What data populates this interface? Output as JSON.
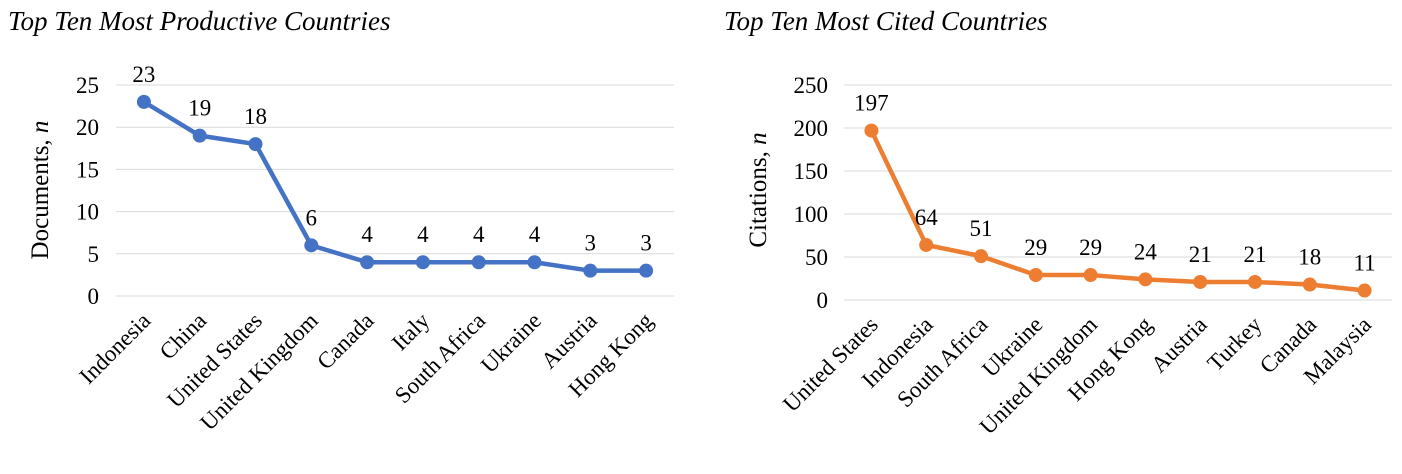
{
  "chart_data": [
    {
      "type": "line",
      "title": "Top Ten Most Productive Countries",
      "ylabel": "Documents, ",
      "ylabel_italic": "n",
      "categories": [
        "Indonesia",
        "China",
        "United States",
        "United Kingdom",
        "Canada",
        "Italy",
        "South Africa",
        "Ukraine",
        "Austria",
        "Hong Kong"
      ],
      "values": [
        23,
        19,
        18,
        6,
        4,
        4,
        4,
        4,
        3,
        3
      ],
      "ylim": [
        0,
        25
      ],
      "yticks": [
        0,
        5,
        10,
        15,
        20,
        25
      ],
      "grid": true,
      "color": "#4472C4"
    },
    {
      "type": "line",
      "title": "Top Ten Most Cited Countries",
      "ylabel": "Citations, ",
      "ylabel_italic": "n",
      "categories": [
        "United States",
        "Indonesia",
        "South Africa",
        "Ukraine",
        "United Kingdom",
        "Hong Kong",
        "Austria",
        "Turkey",
        "Canada",
        "Malaysia"
      ],
      "values": [
        197,
        64,
        51,
        29,
        29,
        24,
        21,
        21,
        18,
        11
      ],
      "ylim": [
        0,
        250
      ],
      "yticks": [
        0,
        50,
        100,
        150,
        200,
        250
      ],
      "grid": true,
      "color": "#ED7D31"
    }
  ]
}
